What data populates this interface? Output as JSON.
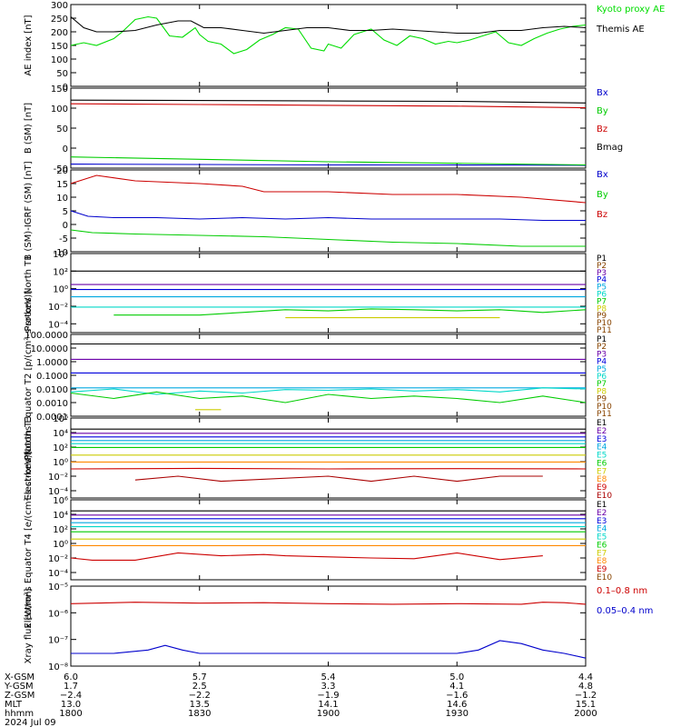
{
  "chart_data": [
    {
      "type": "line",
      "ylabel": "AE index [nT]",
      "ylim": [
        0,
        300
      ],
      "yticks": [
        0,
        50,
        100,
        150,
        200,
        250,
        300
      ],
      "scale": "linear",
      "legend_placement": "right",
      "series": [
        {
          "name": "Kyoto proxy AE",
          "color": "#00dd00",
          "x": [
            1800,
            1803,
            1806,
            1810,
            1812,
            1815,
            1818,
            1820,
            1823,
            1826,
            1829,
            1830,
            1832,
            1835,
            1838,
            1841,
            1844,
            1847,
            1850,
            1853,
            1856,
            1859,
            1900,
            1903,
            1906,
            1910,
            1913,
            1916,
            1919,
            1922,
            1925,
            1928,
            1930,
            1933,
            1936,
            1939,
            1942,
            1945,
            1948,
            1951,
            1954,
            1957,
            2000
          ],
          "y": [
            150,
            160,
            150,
            175,
            200,
            245,
            255,
            250,
            185,
            180,
            215,
            190,
            165,
            155,
            120,
            135,
            170,
            190,
            215,
            210,
            140,
            130,
            155,
            140,
            190,
            210,
            170,
            150,
            185,
            175,
            155,
            165,
            160,
            170,
            185,
            200,
            160,
            150,
            175,
            195,
            210,
            220,
            225
          ]
        },
        {
          "name": "Themis AE",
          "color": "#000000",
          "x": [
            1800,
            1803,
            1806,
            1810,
            1815,
            1820,
            1825,
            1828,
            1831,
            1835,
            1840,
            1845,
            1850,
            1855,
            1900,
            1905,
            1910,
            1915,
            1920,
            1925,
            1930,
            1935,
            1940,
            1945,
            1950,
            1955,
            2000
          ],
          "y": [
            255,
            215,
            200,
            200,
            205,
            225,
            240,
            240,
            215,
            215,
            205,
            195,
            205,
            215,
            215,
            205,
            205,
            210,
            205,
            200,
            195,
            195,
            205,
            205,
            215,
            220,
            215
          ]
        }
      ]
    },
    {
      "type": "line",
      "ylabel": "B (SM) [nT]",
      "ylim": [
        -50,
        150
      ],
      "yticks": [
        -50,
        0,
        50,
        100,
        150
      ],
      "scale": "linear",
      "legend_placement": "right",
      "series": [
        {
          "name": "Bx",
          "color": "#0000cc",
          "x": [
            1800,
            1830,
            1900,
            1930,
            2000
          ],
          "y": [
            -40,
            -41,
            -42,
            -42,
            -43
          ]
        },
        {
          "name": "By",
          "color": "#00cc00",
          "x": [
            1800,
            1830,
            1900,
            1930,
            2000
          ],
          "y": [
            -22,
            -28,
            -34,
            -38,
            -42
          ]
        },
        {
          "name": "Bz",
          "color": "#cc0000",
          "x": [
            1800,
            1830,
            1900,
            1930,
            2000
          ],
          "y": [
            111,
            109,
            107,
            105,
            101
          ]
        },
        {
          "name": "Bmag",
          "color": "#000000",
          "x": [
            1800,
            1830,
            1900,
            1930,
            2000
          ],
          "y": [
            120,
            119,
            118,
            117,
            113
          ]
        }
      ]
    },
    {
      "type": "line",
      "ylabel": "B (SM)-IGRF (SM) [nT]",
      "ylim": [
        -10,
        20
      ],
      "yticks": [
        -10,
        -5,
        0,
        5,
        10,
        15,
        20
      ],
      "scale": "linear",
      "legend_placement": "right",
      "series": [
        {
          "name": "Bx",
          "color": "#0000cc",
          "x": [
            1800,
            1804,
            1810,
            1820,
            1830,
            1840,
            1850,
            1900,
            1910,
            1920,
            1930,
            1940,
            1950,
            2000
          ],
          "y": [
            5,
            3,
            2.5,
            2.5,
            2,
            2.5,
            2,
            2.5,
            2,
            2,
            2,
            2,
            1.5,
            1.5
          ]
        },
        {
          "name": "By",
          "color": "#00cc00",
          "x": [
            1800,
            1805,
            1815,
            1830,
            1845,
            1900,
            1915,
            1930,
            1945,
            2000
          ],
          "y": [
            -2,
            -3,
            -3.5,
            -4,
            -4.5,
            -5.5,
            -6.5,
            -7,
            -8,
            -8
          ]
        },
        {
          "name": "Bz",
          "color": "#cc0000",
          "x": [
            1800,
            1806,
            1815,
            1830,
            1840,
            1845,
            1900,
            1915,
            1930,
            1945,
            2000
          ],
          "y": [
            15,
            18,
            16,
            15,
            14,
            12,
            12,
            11,
            11,
            10,
            8
          ]
        }
      ]
    },
    {
      "type": "line",
      "ylabel": "Protons North T1",
      "ylim": [
        1e-05,
        10000
      ],
      "yticks": [
        "10⁻⁴",
        "10⁻²",
        "10⁰",
        "10²",
        "10⁴"
      ],
      "scale": "log",
      "legend_placement": "right",
      "legend": [
        "P1",
        "P2",
        "P3",
        "P4",
        "P5",
        "P6",
        "P7",
        "P8",
        "P9",
        "P10",
        "P11"
      ],
      "series": [
        {
          "name": "P1",
          "color": "#000000",
          "x": [
            1800,
            2000
          ],
          "y": [
            100,
            100
          ]
        },
        {
          "name": "P3",
          "color": "#6a00a8",
          "x": [
            1800,
            2000
          ],
          "y": [
            3,
            3
          ]
        },
        {
          "name": "P4",
          "color": "#0000dd",
          "x": [
            1800,
            2000
          ],
          "y": [
            0.8,
            0.8
          ]
        },
        {
          "name": "P5",
          "color": "#00a8e0",
          "x": [
            1800,
            2000
          ],
          "y": [
            0.12,
            0.12
          ]
        },
        {
          "name": "P6",
          "color": "#00d8c8",
          "x": [
            1800,
            2000
          ],
          "y": [
            0.008,
            0.008
          ]
        },
        {
          "name": "P7",
          "color": "#00cc00",
          "x": [
            1810,
            1820,
            1830,
            1840,
            1850,
            1900,
            1910,
            1920,
            1930,
            1940,
            1950,
            2000
          ],
          "y": [
            0.001,
            0.001,
            0.001,
            0.002,
            0.004,
            0.003,
            0.005,
            0.004,
            0.003,
            0.004,
            0.002,
            0.004
          ]
        },
        {
          "name": "P8",
          "color": "#cccc00",
          "x": [
            1850,
            1855,
            1935,
            1940
          ],
          "y": [
            0.0005,
            0.0005,
            0.0005,
            0.0005
          ]
        }
      ]
    },
    {
      "type": "line",
      "ylabel": "Protons Equator T2 [p/(cm²-s-sr-keV)]",
      "ylim": [
        0.0001,
        100
      ],
      "yticks": [
        "100.0000",
        "10.0000",
        "1.0000",
        "0.1000",
        "0.0100",
        "0.0010",
        "0.0001"
      ],
      "scale": "log",
      "legend_placement": "right",
      "legend": [
        "P1",
        "P2",
        "P3",
        "P4",
        "P5",
        "P6",
        "P7",
        "P8",
        "P9",
        "P10",
        "P11"
      ],
      "series": [
        {
          "name": "P1",
          "color": "#000000",
          "x": [
            1800,
            2000
          ],
          "y": [
            20,
            20
          ]
        },
        {
          "name": "P3",
          "color": "#6a00a8",
          "x": [
            1800,
            2000
          ],
          "y": [
            1.5,
            1.5
          ]
        },
        {
          "name": "P4",
          "color": "#0000dd",
          "x": [
            1800,
            2000
          ],
          "y": [
            0.15,
            0.15
          ]
        },
        {
          "name": "P5",
          "color": "#00a8e0",
          "x": [
            1800,
            2000
          ],
          "y": [
            0.012,
            0.012
          ]
        },
        {
          "name": "P6",
          "color": "#00d8c8",
          "x": [
            1800,
            1810,
            1820,
            1830,
            1840,
            1850,
            1900,
            1910,
            1920,
            1930,
            1940,
            1950,
            2000
          ],
          "y": [
            0.006,
            0.01,
            0.004,
            0.007,
            0.005,
            0.009,
            0.008,
            0.01,
            0.007,
            0.009,
            0.006,
            0.012,
            0.01
          ]
        },
        {
          "name": "P7",
          "color": "#00cc00",
          "x": [
            1800,
            1810,
            1820,
            1830,
            1840,
            1850,
            1900,
            1910,
            1920,
            1930,
            1940,
            1950,
            2000
          ],
          "y": [
            0.005,
            0.002,
            0.006,
            0.002,
            0.003,
            0.001,
            0.004,
            0.002,
            0.003,
            0.002,
            0.001,
            0.003,
            0.001
          ]
        },
        {
          "name": "P8",
          "color": "#cccc00",
          "x": [
            1829,
            1835
          ],
          "y": [
            0.0003,
            0.0003
          ]
        }
      ]
    },
    {
      "type": "line",
      "ylabel": "Electrons North T3",
      "ylim": [
        1e-05,
        1000000
      ],
      "yticks": [
        "10⁻⁴",
        "10⁻²",
        "10⁰",
        "10²",
        "10⁴",
        "10⁶"
      ],
      "scale": "log",
      "legend_placement": "right",
      "legend": [
        "E1",
        "E2",
        "E3",
        "E4",
        "E5",
        "E6",
        "E7",
        "E8",
        "E9",
        "E10"
      ],
      "series": [
        {
          "name": "E1",
          "color": "#000000",
          "x": [
            1800,
            2000
          ],
          "y": [
            30000,
            30000
          ]
        },
        {
          "name": "E2",
          "color": "#6a00a8",
          "x": [
            1800,
            2000
          ],
          "y": [
            8000,
            8000
          ]
        },
        {
          "name": "E3",
          "color": "#0000dd",
          "x": [
            1800,
            2000
          ],
          "y": [
            2500,
            2500
          ]
        },
        {
          "name": "E4",
          "color": "#00a8e0",
          "x": [
            1800,
            2000
          ],
          "y": [
            800,
            800
          ]
        },
        {
          "name": "E5",
          "color": "#00d8c8",
          "x": [
            1800,
            2000
          ],
          "y": [
            300,
            300
          ]
        },
        {
          "name": "E6",
          "color": "#00cc00",
          "x": [
            1800,
            2000
          ],
          "y": [
            90,
            90
          ]
        },
        {
          "name": "E7",
          "color": "#cccc00",
          "x": [
            1800,
            2000
          ],
          "y": [
            8,
            8
          ]
        },
        {
          "name": "E8",
          "color": "#ff8800",
          "x": [
            1800,
            2000
          ],
          "y": [
            0.9,
            0.9
          ]
        },
        {
          "name": "E9",
          "color": "#cc0000",
          "x": [
            1800,
            1830,
            1900,
            1930,
            2000
          ],
          "y": [
            0.1,
            0.12,
            0.1,
            0.11,
            0.1
          ]
        },
        {
          "name": "E10",
          "color": "#aa0000",
          "x": [
            1815,
            1825,
            1835,
            1900,
            1910,
            1920,
            1930,
            1940,
            1950
          ],
          "y": [
            0.003,
            0.01,
            0.002,
            0.01,
            0.002,
            0.01,
            0.002,
            0.01,
            0.01
          ]
        }
      ]
    },
    {
      "type": "line",
      "ylabel": "Electrons Equator T4 [e/(cm²-s-sr-keV)]",
      "ylim": [
        1e-05,
        1000000
      ],
      "yticks": [
        "10⁻⁴",
        "10⁻²",
        "10⁰",
        "10²",
        "10⁴",
        "10⁶"
      ],
      "scale": "log",
      "legend_placement": "right",
      "legend": [
        "E1",
        "E2",
        "E3",
        "E4",
        "E5",
        "E6",
        "E7",
        "E8",
        "E9",
        "E10"
      ],
      "series": [
        {
          "name": "E1",
          "color": "#000000",
          "x": [
            1800,
            2000
          ],
          "y": [
            30000,
            30000
          ]
        },
        {
          "name": "E2",
          "color": "#6a00a8",
          "x": [
            1800,
            2000
          ],
          "y": [
            8000,
            8000
          ]
        },
        {
          "name": "E3",
          "color": "#0000dd",
          "x": [
            1800,
            2000
          ],
          "y": [
            2500,
            2500
          ]
        },
        {
          "name": "E4",
          "color": "#00a8e0",
          "x": [
            1800,
            2000
          ],
          "y": [
            700,
            700
          ]
        },
        {
          "name": "E5",
          "color": "#00d8c8",
          "x": [
            1800,
            2000
          ],
          "y": [
            200,
            200
          ]
        },
        {
          "name": "E6",
          "color": "#00cc00",
          "x": [
            1800,
            2000
          ],
          "y": [
            40,
            40
          ]
        },
        {
          "name": "E7",
          "color": "#cccc00",
          "x": [
            1800,
            2000
          ],
          "y": [
            4,
            4
          ]
        },
        {
          "name": "E8",
          "color": "#ff8800",
          "x": [
            1800,
            2000
          ],
          "y": [
            0.5,
            0.5
          ]
        },
        {
          "name": "E9",
          "color": "#cc0000",
          "x": [
            1800,
            1805,
            1815,
            1825,
            1835,
            1845,
            1850,
            1910,
            1920,
            1930,
            1940,
            1950
          ],
          "y": [
            0.01,
            0.005,
            0.005,
            0.05,
            0.02,
            0.03,
            0.02,
            0.01,
            0.008,
            0.05,
            0.006,
            0.02
          ]
        }
      ]
    },
    {
      "type": "line",
      "ylabel": "Xray flux [W/m²]",
      "ylim": [
        1e-08,
        1e-05
      ],
      "yticks": [
        "10⁻⁸",
        "10⁻⁷",
        "10⁻⁶",
        "10⁻⁵"
      ],
      "scale": "log",
      "legend_placement": "right",
      "series": [
        {
          "name": "0.1–0.8 nm",
          "color": "#cc0000",
          "x": [
            1800,
            1815,
            1830,
            1845,
            1900,
            1915,
            1930,
            1945,
            1950,
            1955,
            2000
          ],
          "y": [
            2.2e-06,
            2.5e-06,
            2.3e-06,
            2.4e-06,
            2.2e-06,
            2.1e-06,
            2.2e-06,
            2.1e-06,
            2.5e-06,
            2.4e-06,
            2.1e-06
          ]
        },
        {
          "name": "0.05–0.4 nm",
          "color": "#0000cc",
          "x": [
            1800,
            1810,
            1818,
            1822,
            1826,
            1830,
            1840,
            1900,
            1910,
            1920,
            1930,
            1935,
            1940,
            1945,
            1950,
            1955,
            2000
          ],
          "y": [
            3e-08,
            3e-08,
            4e-08,
            6e-08,
            4e-08,
            3e-08,
            3e-08,
            3e-08,
            3e-08,
            3e-08,
            3e-08,
            4e-08,
            9e-08,
            7e-08,
            4e-08,
            3e-08,
            2e-08
          ]
        }
      ]
    }
  ],
  "x_axis": {
    "ticks": [
      1800,
      1830,
      1900,
      1930,
      2000
    ],
    "rows": [
      {
        "label": "X-GSM",
        "values": [
          "6.0",
          "5.7",
          "5.4",
          "5.0",
          "4.4"
        ]
      },
      {
        "label": "Y-GSM",
        "values": [
          "1.7",
          "2.5",
          "3.3",
          "4.1",
          "4.8"
        ]
      },
      {
        "label": "Z-GSM",
        "values": [
          "−2.4",
          "−2.2",
          "−1.9",
          "−1.6",
          "−1.2"
        ]
      },
      {
        "label": "MLT",
        "values": [
          "13.0",
          "13.5",
          "14.1",
          "14.6",
          "15.1"
        ]
      },
      {
        "label": "hhmm",
        "values": [
          "1800",
          "1830",
          "1900",
          "1930",
          "2000"
        ]
      }
    ],
    "date": "2024 Jul 09"
  }
}
